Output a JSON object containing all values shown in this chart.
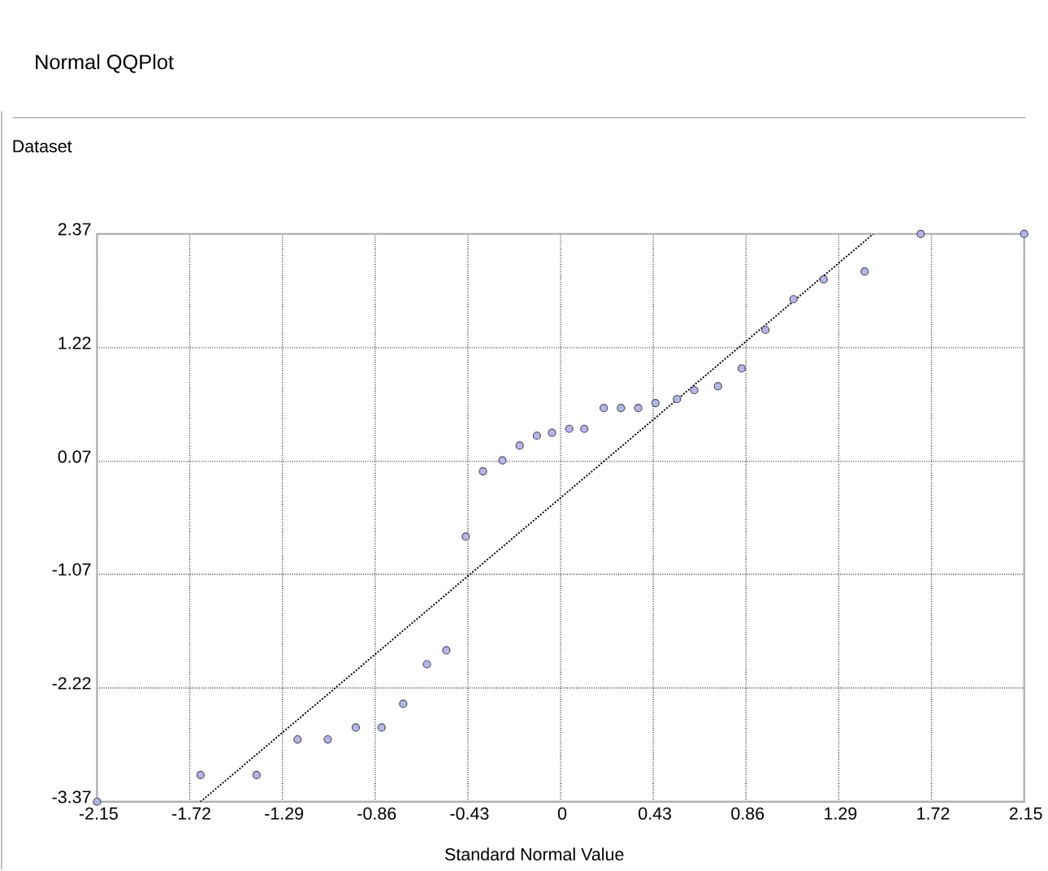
{
  "chart_data": {
    "type": "scatter",
    "title": "Normal QQPlot",
    "ylabel": "Dataset",
    "xlabel": "Standard Normal Value",
    "xlim": [
      -2.15,
      2.15
    ],
    "ylim": [
      -3.37,
      2.37
    ],
    "xticks": [
      -2.15,
      -1.72,
      -1.29,
      -0.86,
      -0.43,
      0,
      0.43,
      0.86,
      1.29,
      1.72,
      2.15
    ],
    "yticks": [
      -3.37,
      -2.22,
      -1.07,
      0.07,
      1.22,
      2.37
    ],
    "grid": true,
    "series": [
      {
        "color": "#b4b4f0",
        "marker": "circle",
        "x": [
          -2.15,
          -1.67,
          -1.41,
          -1.22,
          -1.08,
          -0.95,
          -0.83,
          -0.73,
          -0.62,
          -0.53,
          -0.44,
          -0.36,
          -0.27,
          -0.19,
          -0.11,
          -0.04,
          0.04,
          0.11,
          0.2,
          0.28,
          0.36,
          0.44,
          0.54,
          0.62,
          0.73,
          0.84,
          0.95,
          1.08,
          1.22,
          1.41,
          1.67,
          2.15
        ],
        "values": [
          -3.37,
          -3.1,
          -3.1,
          -2.74,
          -2.74,
          -2.62,
          -2.62,
          -2.38,
          -1.98,
          -1.84,
          -0.69,
          -0.03,
          0.08,
          0.23,
          0.33,
          0.36,
          0.4,
          0.4,
          0.61,
          0.61,
          0.61,
          0.66,
          0.7,
          0.79,
          0.83,
          1.01,
          1.4,
          1.71,
          1.91,
          1.99,
          2.37,
          2.37
        ]
      },
      {
        "type": "line",
        "color": "#000000",
        "marker": "none",
        "line_style": "dotted",
        "x": [
          -1.67,
          1.45
        ],
        "values": [
          -3.37,
          2.37
        ]
      }
    ]
  }
}
